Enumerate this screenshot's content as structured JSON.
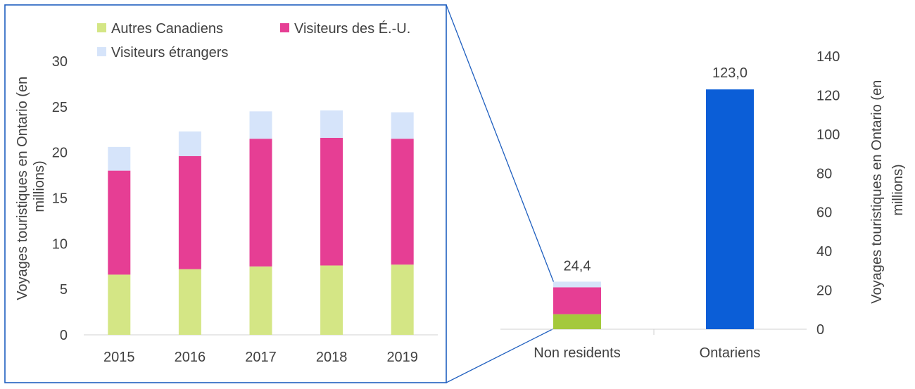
{
  "chart_data": [
    {
      "type": "bar",
      "stacked": true,
      "categories": [
        "2015",
        "2016",
        "2017",
        "2018",
        "2019"
      ],
      "series": [
        {
          "name": "Autres Canadiens",
          "color": "#d4e685",
          "values": [
            6.6,
            7.2,
            7.5,
            7.6,
            7.7
          ]
        },
        {
          "name": "Visiteurs des É.-U.",
          "color": "#e63e94",
          "values": [
            11.4,
            12.4,
            14.0,
            14.0,
            13.8
          ]
        },
        {
          "name": "Visiteurs étrangers",
          "color": "#d6e4fa",
          "values": [
            2.6,
            2.7,
            3.0,
            3.0,
            2.9
          ]
        }
      ],
      "ylabel": "Voyages touristiques en Ontario  (en millions)",
      "ylim": [
        0,
        30
      ],
      "yticks": [
        "0",
        "5",
        "10",
        "15",
        "20",
        "25",
        "30"
      ],
      "grid": false,
      "legend": "top"
    },
    {
      "type": "bar",
      "categories": [
        "Non residents",
        "Ontariens"
      ],
      "stacked_bar": {
        "category": "Non residents",
        "segments": [
          {
            "name": "Autres Canadiens",
            "color": "#a4c93c",
            "value": 7.7
          },
          {
            "name": "Visiteurs des É.-U.",
            "color": "#e63e94",
            "value": 13.8
          },
          {
            "name": "Visiteurs étrangers",
            "color": "#d6e4fa",
            "value": 2.9
          }
        ],
        "label": "24,4"
      },
      "single_bar": {
        "category": "Ontariens",
        "value": 123.0,
        "color": "#0b5ed7",
        "label": "123,0"
      },
      "ylabel": "Voyages touristiques en Ontario  (en millions)",
      "ylim": [
        0,
        140
      ],
      "yticks": [
        "0",
        "20",
        "40",
        "60",
        "80",
        "100",
        "120",
        "140"
      ],
      "grid": false
    }
  ],
  "colors": {
    "zoom_box": "#1f5fbf",
    "axis": "#d0d0d0",
    "text": "#404040"
  }
}
